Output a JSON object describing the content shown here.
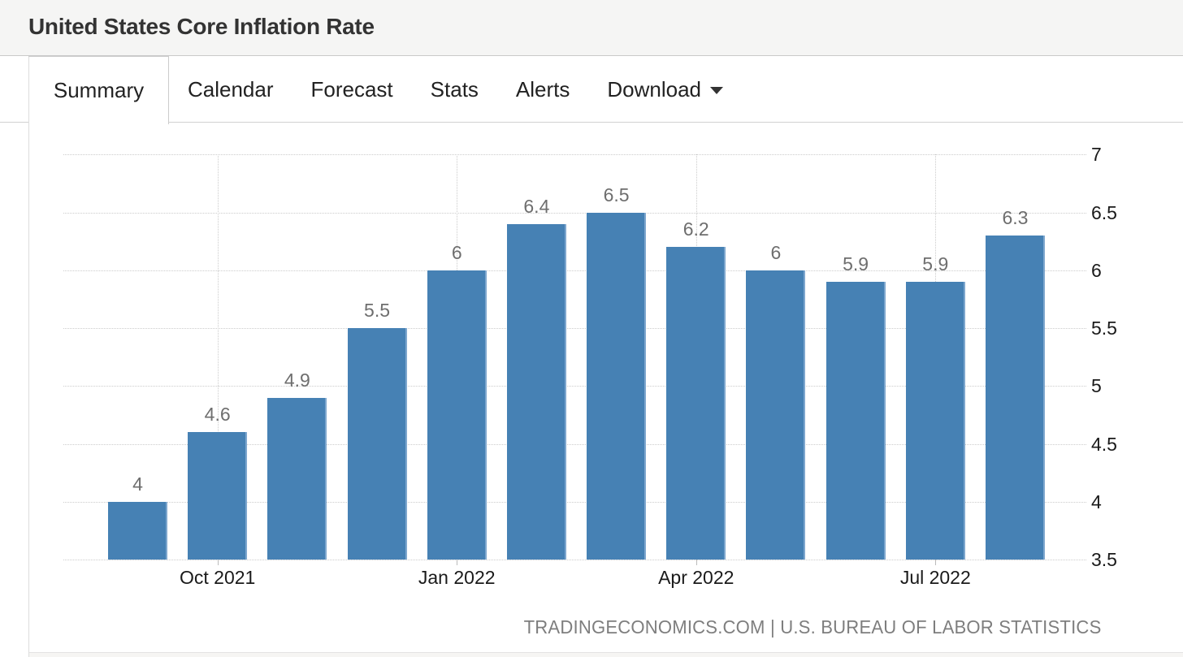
{
  "header": {
    "title": "United States Core Inflation Rate"
  },
  "tabs": {
    "active": "Summary",
    "items": [
      "Summary",
      "Calendar",
      "Forecast",
      "Stats",
      "Alerts",
      "Download"
    ]
  },
  "chart_data": {
    "type": "bar",
    "title": "United States Core Inflation Rate",
    "values": [
      4,
      4.6,
      4.9,
      5.5,
      6,
      6.4,
      6.5,
      6.2,
      6,
      5.9,
      5.9,
      6.3
    ],
    "value_labels": [
      "4",
      "4.6",
      "4.9",
      "5.5",
      "6",
      "6.4",
      "6.5",
      "6.2",
      "6",
      "5.9",
      "5.9",
      "6.3"
    ],
    "x_ticks": [
      {
        "label": "Oct 2021",
        "bar_index": 1
      },
      {
        "label": "Jan 2022",
        "bar_index": 4
      },
      {
        "label": "Apr 2022",
        "bar_index": 7
      },
      {
        "label": "Jul 2022",
        "bar_index": 10
      }
    ],
    "ylim": [
      3.5,
      7
    ],
    "y_ticks": [
      7,
      6.5,
      6,
      5.5,
      5,
      4.5,
      4,
      3.5
    ],
    "y_tick_labels": [
      "7",
      "6.5",
      "6",
      "5.5",
      "5",
      "4.5",
      "4",
      "3.5"
    ],
    "yaxis_side": "right",
    "grid": "dotted horizontal at 0.5 steps; dotted vertical at labeled month ticks",
    "legend": "none",
    "bar_color": "#4681b4",
    "value_label_color": "#6e6e6e",
    "attribution": "TRADINGECONOMICS.COM | U.S. BUREAU OF LABOR STATISTICS"
  }
}
